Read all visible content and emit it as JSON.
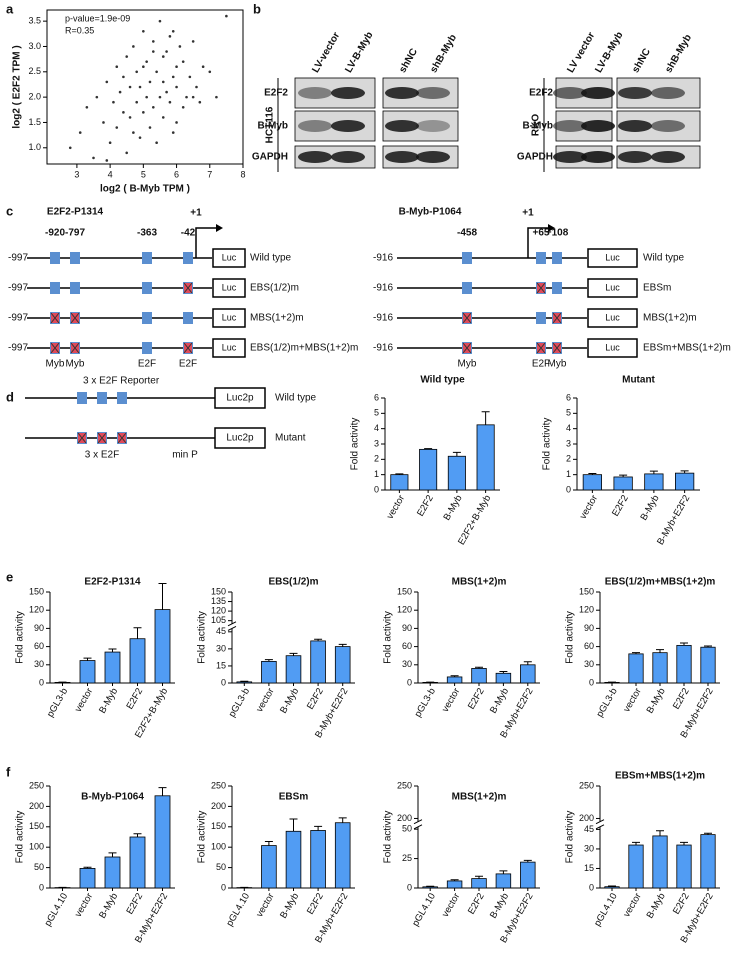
{
  "panel_labels": [
    "a",
    "b",
    "c",
    "d",
    "e",
    "f"
  ],
  "blots": [
    {
      "cell_line": "HCT116",
      "columns": [
        "LV-vector",
        "LV-B-Myb",
        "shNC",
        "shB-Myb"
      ],
      "rows": [
        "E2F2",
        "B-Myb",
        "GAPDH"
      ]
    },
    {
      "cell_line": "RKO",
      "columns": [
        "LV vector",
        "LV-B-Myb",
        "shNC",
        "shB-Myb"
      ],
      "rows": [
        "E2F2",
        "B-Myb",
        "GAPDH"
      ]
    }
  ],
  "promoters": [
    {
      "title": "E2F2-P1314",
      "tss": "+1",
      "start": "-997",
      "positions": [
        "-920",
        "-797",
        "-363",
        "-42"
      ],
      "sites": [
        "Myb",
        "Myb",
        "E2F",
        "E2F"
      ],
      "reporter": "Luc",
      "constructs": [
        "Wild type",
        "EBS(1/2)m",
        "MBS(1+2)m",
        "EBS(1/2)m+MBS(1+2)m"
      ]
    },
    {
      "title": "B-Myb-P1064",
      "tss": "+1",
      "start": "-916",
      "positions": [
        "-458",
        "+65",
        "+108"
      ],
      "sites": [
        "Myb",
        "E2F",
        "Myb"
      ],
      "reporter": "Luc",
      "constructs": [
        "Wild type",
        "EBSm",
        "MBS(1+2)m",
        "EBSm+MBS(1+2)m"
      ]
    }
  ],
  "reporter_3xE2F": {
    "title": "3 x E2F Reporter",
    "reporter": "Luc2p",
    "constructs": [
      "Wild type",
      "Mutant"
    ],
    "sites": "3 x E2F",
    "min_promoter": "min P"
  },
  "chart_data": [
    {
      "type": "scatter",
      "annotations": [
        "p-value=1.9e-09",
        "R=0.35"
      ],
      "x_label": "log2 ( B-Myb TPM )",
      "y_label": "log2 ( E2F2 TPM )",
      "color": "#333333",
      "x": [
        2.8,
        3.1,
        3.3,
        3.5,
        3.6,
        3.8,
        3.9,
        4.0,
        4.1,
        4.2,
        4.2,
        4.3,
        4.4,
        4.5,
        4.5,
        4.6,
        4.6,
        4.7,
        4.8,
        4.8,
        4.9,
        4.9,
        5.0,
        5.0,
        5.1,
        5.1,
        5.2,
        5.2,
        5.3,
        5.3,
        5.4,
        5.4,
        5.5,
        5.5,
        5.6,
        5.6,
        5.7,
        5.7,
        5.8,
        5.8,
        5.9,
        5.9,
        6.0,
        6.0,
        6.1,
        6.2,
        6.2,
        6.3,
        6.4,
        6.5,
        6.6,
        6.7,
        6.8,
        7.0,
        7.2,
        7.5,
        4.4,
        5.0,
        5.6,
        6.0,
        4.7,
        5.3,
        3.9,
        6.5,
        5.9
      ],
      "values": [
        1.0,
        1.3,
        1.8,
        0.8,
        2.0,
        1.5,
        2.3,
        1.1,
        1.9,
        2.6,
        1.4,
        2.1,
        1.7,
        2.8,
        0.9,
        2.2,
        1.6,
        3.0,
        1.9,
        2.5,
        1.2,
        2.2,
        3.3,
        1.7,
        2.0,
        2.7,
        1.4,
        2.3,
        3.1,
        1.8,
        2.5,
        1.1,
        3.5,
        2.0,
        2.3,
        1.6,
        2.9,
        2.1,
        3.2,
        1.9,
        2.4,
        1.3,
        2.6,
        2.2,
        3.0,
        1.8,
        2.7,
        2.0,
        2.4,
        3.1,
        2.2,
        1.9,
        2.6,
        2.5,
        2.0,
        3.6,
        2.4,
        2.6,
        2.8,
        1.5,
        1.3,
        2.9,
        0.75,
        2.0,
        3.3
      ],
      "xlim": [
        2.1,
        8.0
      ],
      "xticks": [
        3,
        4,
        5,
        6,
        7,
        8
      ],
      "ylim": [
        0.68,
        3.72
      ],
      "yticks": [
        {
          "value": 1,
          "label": "1.0"
        },
        1.5,
        {
          "value": 2,
          "label": "2.0"
        },
        2.5,
        {
          "value": 3,
          "label": "3.0"
        },
        3.5
      ]
    },
    {
      "type": "bar",
      "title": "Wild type",
      "y_label": "Fold activity",
      "color": "#519cf3",
      "categories": [
        "vector",
        "E2F2",
        "B-Myb",
        "E2F2+B-Myb"
      ],
      "values": [
        1.0,
        2.65,
        2.2,
        4.25
      ],
      "errors": [
        0.05,
        0.05,
        0.25,
        0.85
      ],
      "ylim": [
        0,
        6
      ],
      "yticks": [
        0,
        1,
        2,
        3,
        4,
        5,
        6
      ]
    },
    {
      "type": "bar",
      "title": "Mutant",
      "y_label": "Fold activity",
      "color": "#519cf3",
      "categories": [
        "vector",
        "E2F2",
        "B-Myb",
        "B-Myb+E2F2"
      ],
      "values": [
        1.0,
        0.85,
        1.05,
        1.1
      ],
      "errors": [
        0.08,
        0.12,
        0.18,
        0.15
      ],
      "ylim": [
        0,
        6
      ],
      "yticks": [
        0,
        1,
        2,
        3,
        4,
        5,
        6
      ]
    },
    {
      "type": "bar",
      "title": "E2F2-P1314",
      "y_label": "Fold activity",
      "color": "#519cf3",
      "categories": [
        "pGL3-b",
        "vector",
        "B-Myb",
        "E2F2",
        "E2F2+B-Myb"
      ],
      "values": [
        1,
        37,
        51,
        73,
        121
      ],
      "errors": [
        0.5,
        4,
        5,
        18,
        43
      ],
      "ylim": [
        0,
        150
      ],
      "yticks": [
        0,
        30,
        60,
        90,
        120,
        150
      ]
    },
    {
      "type": "bar",
      "title": "EBS(1/2)m",
      "y_label": "Fold activity",
      "color": "#519cf3",
      "categories": [
        "pGL3-b",
        "vector",
        "B-Myb",
        "E2F2",
        "B-Myb+E2F2"
      ],
      "values": [
        1,
        19,
        24,
        37,
        32
      ],
      "errors": [
        0.5,
        1.5,
        2,
        1.5,
        2
      ],
      "ylim": [
        0,
        150
      ],
      "ybreak": [
        48,
        100
      ],
      "yticks": [
        0,
        15,
        30,
        45,
        105,
        120,
        135,
        150
      ]
    },
    {
      "type": "bar",
      "title": "MBS(1+2)m",
      "y_label": "Fold activity",
      "color": "#519cf3",
      "categories": [
        "pGL3-b",
        "vector",
        "E2F2",
        "B-Myb",
        "B-Myb+E2F2"
      ],
      "values": [
        1,
        10,
        24,
        16,
        30
      ],
      "errors": [
        0.5,
        2,
        2,
        3,
        5
      ],
      "ylim": [
        0,
        150
      ],
      "yticks": [
        0,
        30,
        60,
        90,
        120,
        150
      ]
    },
    {
      "type": "bar",
      "title": "EBS(1/2)m+MBS(1+2)m",
      "y_label": "Fold activity",
      "color": "#519cf3",
      "categories": [
        "pGL3-b",
        "vector",
        "B-Myb",
        "E2F2",
        "B-Myb+E2F2"
      ],
      "values": [
        1,
        48,
        50,
        62,
        59
      ],
      "errors": [
        0.5,
        2,
        5,
        4,
        2
      ],
      "ylim": [
        0,
        150
      ],
      "yticks": [
        0,
        30,
        60,
        90,
        120,
        150
      ]
    },
    {
      "type": "bar",
      "title": "B-Myb-P1064",
      "y_label": "Fold activity",
      "color": "#519cf3",
      "categories": [
        "pGL4.10",
        "vector",
        "B-Myb",
        "E2F2",
        "B-Myb+E2F2"
      ],
      "values": [
        1,
        48,
        76,
        125,
        226
      ],
      "errors": [
        0.5,
        3,
        10,
        8,
        20
      ],
      "ylim": [
        0,
        250
      ],
      "yticks": [
        0,
        50,
        100,
        150,
        200,
        250
      ]
    },
    {
      "type": "bar",
      "title": "EBSm",
      "y_label": "Fold activity",
      "color": "#519cf3",
      "categories": [
        "pGL4.10",
        "vector",
        "B-Myb",
        "E2F2",
        "B-Myb+E2F2"
      ],
      "values": [
        1,
        104,
        139,
        141,
        160
      ],
      "errors": [
        0.5,
        10,
        30,
        10,
        12
      ],
      "ylim": [
        0,
        250
      ],
      "yticks": [
        0,
        50,
        100,
        150,
        200,
        250
      ]
    },
    {
      "type": "bar",
      "title": "MBS(1+2)m",
      "y_label": "Fold activity",
      "color": "#519cf3",
      "categories": [
        "pGL4.10",
        "vector",
        "E2F2",
        "B-Myb",
        "B-Myb+E2F2"
      ],
      "values": [
        1,
        6,
        8,
        12,
        22
      ],
      "errors": [
        0.5,
        1,
        2,
        2.5,
        1.5
      ],
      "ylim": [
        0,
        250
      ],
      "ybreak": [
        52,
        195
      ],
      "yticks": [
        0,
        25,
        50,
        200,
        250
      ]
    },
    {
      "type": "bar",
      "title": "EBSm+MBS(1+2)m",
      "y_label": "Fold activity",
      "color": "#519cf3",
      "categories": [
        "pGL4.10",
        "vector",
        "B-Myb",
        "E2F2",
        "B-Myb+E2F2"
      ],
      "values": [
        1,
        33,
        40,
        33,
        41
      ],
      "errors": [
        0.5,
        2,
        4,
        2,
        1
      ],
      "ylim": [
        0,
        250
      ],
      "ybreak": [
        47,
        195
      ],
      "yticks": [
        0,
        15,
        30,
        45,
        200,
        250
      ]
    }
  ]
}
